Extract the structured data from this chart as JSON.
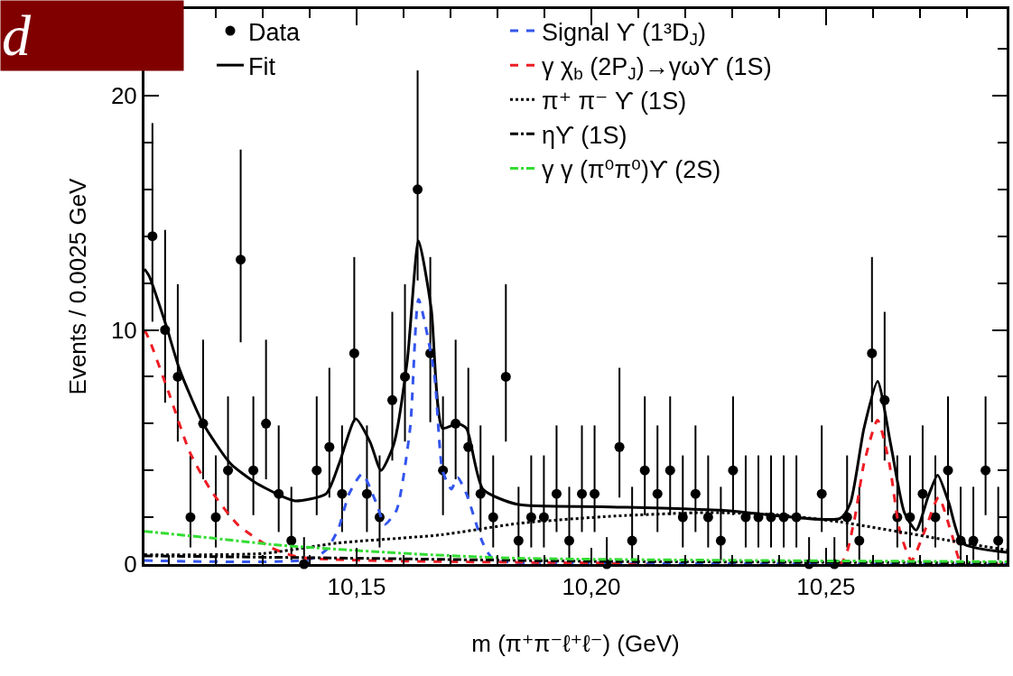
{
  "chart_data": {
    "type": "scatter",
    "title": "d",
    "xlabel": "m (π⁺π⁻ℓ⁺ℓ⁻) (GeV)",
    "ylabel": "Events / 0.0025 GeV",
    "xlim": [
      10.1048,
      10.2885
    ],
    "xticks": [
      {
        "value": 10.11,
        "label": null
      },
      {
        "value": 10.12,
        "label": null
      },
      {
        "value": 10.13,
        "label": null
      },
      {
        "value": 10.14,
        "label": null
      },
      {
        "value": 10.15,
        "label": "10,15"
      },
      {
        "value": 10.16,
        "label": null
      },
      {
        "value": 10.17,
        "label": null
      },
      {
        "value": 10.18,
        "label": null
      },
      {
        "value": 10.19,
        "label": null
      },
      {
        "value": 10.2,
        "label": "10,20"
      },
      {
        "value": 10.21,
        "label": null
      },
      {
        "value": 10.22,
        "label": null
      },
      {
        "value": 10.23,
        "label": null
      },
      {
        "value": 10.24,
        "label": null
      },
      {
        "value": 10.25,
        "label": "10,25"
      },
      {
        "value": 10.26,
        "label": null
      },
      {
        "value": 10.27,
        "label": null
      },
      {
        "value": 10.28,
        "label": null
      }
    ],
    "ylim": [
      0,
      23.7
    ],
    "yticks": [
      0,
      {
        "value": 2,
        "label": null
      },
      {
        "value": 4,
        "label": null
      },
      {
        "value": 6,
        "label": null
      },
      {
        "value": 8,
        "label": null
      },
      10,
      {
        "value": 12,
        "label": null
      },
      {
        "value": 14,
        "label": null
      },
      {
        "value": 16,
        "label": null
      },
      {
        "value": 18,
        "label": null
      },
      20,
      {
        "value": 22,
        "label": null
      }
    ],
    "grid": false,
    "legend": "top",
    "series": [
      {
        "name": "Data",
        "marker": "circle",
        "color": "#000000",
        "x": [
          10.1065,
          10.1092,
          10.1119,
          10.1146,
          10.1173,
          10.12,
          10.1226,
          10.1253,
          10.128,
          10.1307,
          10.1334,
          10.1361,
          10.1388,
          10.1415,
          10.1442,
          10.1469,
          10.1495,
          10.1522,
          10.1549,
          10.1576,
          10.1603,
          10.163,
          10.1657,
          10.1684,
          10.1711,
          10.1738,
          10.1764,
          10.1791,
          10.1818,
          10.1845,
          10.1872,
          10.1899,
          10.1926,
          10.1953,
          10.198,
          10.2007,
          10.2033,
          10.206,
          10.2087,
          10.2114,
          10.2141,
          10.2168,
          10.2195,
          10.2222,
          10.2249,
          10.2276,
          10.2302,
          10.2329,
          10.2356,
          10.2383,
          10.241,
          10.2437,
          10.2464,
          10.2491,
          10.2518,
          10.2545,
          10.2571,
          10.2598,
          10.2625,
          10.2652,
          10.2679,
          10.2706,
          10.2733,
          10.276,
          10.2787,
          10.2814,
          10.284,
          10.2867
        ],
        "values": [
          14,
          10,
          8,
          2,
          6,
          2,
          4,
          13,
          4,
          6,
          3,
          1,
          0,
          4,
          5,
          3,
          9,
          3,
          2,
          7,
          8,
          16,
          9,
          4,
          6,
          5,
          3,
          2,
          8,
          1,
          2,
          2,
          3,
          1,
          3,
          3,
          0,
          5,
          1,
          4,
          3,
          4,
          2,
          3,
          2,
          1,
          4,
          2,
          2,
          2,
          2,
          2,
          0,
          3,
          0,
          2,
          1,
          9,
          7,
          2,
          2,
          3,
          2,
          4,
          1,
          1,
          4,
          1
        ],
        "errors": [
          [
            10.35,
            18.83
          ],
          [
            6.89,
            14.27
          ],
          [
            5.23,
            11.95
          ],
          [
            0.71,
            4.64
          ],
          [
            3.62,
            9.58
          ],
          [
            0.71,
            4.64
          ],
          [
            2.09,
            7.16
          ],
          [
            9.47,
            17.7
          ],
          [
            2.09,
            7.16
          ],
          [
            3.62,
            9.58
          ],
          [
            1.37,
            5.92
          ],
          [
            0.17,
            3.3
          ],
          [
            0,
            1.15
          ],
          [
            2.09,
            7.16
          ],
          [
            2.84,
            8.38
          ],
          [
            1.37,
            5.92
          ],
          [
            6.06,
            13.11
          ],
          [
            1.37,
            5.92
          ],
          [
            0.71,
            4.64
          ],
          [
            4.42,
            10.77
          ],
          [
            5.23,
            11.95
          ],
          [
            12.11,
            21.08
          ],
          [
            6.06,
            13.11
          ],
          [
            2.09,
            7.16
          ],
          [
            3.62,
            9.58
          ],
          [
            2.84,
            8.38
          ],
          [
            1.37,
            5.92
          ],
          [
            0.71,
            4.64
          ],
          [
            5.23,
            11.95
          ],
          [
            0.17,
            3.3
          ],
          [
            0.71,
            4.64
          ],
          [
            0.71,
            4.64
          ],
          [
            1.37,
            5.92
          ],
          [
            0.17,
            3.3
          ],
          [
            1.37,
            5.92
          ],
          [
            1.37,
            5.92
          ],
          [
            0,
            1.15
          ],
          [
            2.84,
            8.38
          ],
          [
            0.17,
            3.3
          ],
          [
            2.09,
            7.16
          ],
          [
            1.37,
            5.92
          ],
          [
            2.09,
            7.16
          ],
          [
            0.71,
            4.64
          ],
          [
            1.37,
            5.92
          ],
          [
            0.71,
            4.64
          ],
          [
            0.17,
            3.3
          ],
          [
            2.09,
            7.16
          ],
          [
            0.71,
            4.64
          ],
          [
            0.71,
            4.64
          ],
          [
            0.71,
            4.64
          ],
          [
            0.71,
            4.64
          ],
          [
            0.71,
            4.64
          ],
          [
            0,
            1.15
          ],
          [
            1.37,
            5.92
          ],
          [
            0,
            1.15
          ],
          [
            0.71,
            4.64
          ],
          [
            0.17,
            3.3
          ],
          [
            6.06,
            13.11
          ],
          [
            4.42,
            10.77
          ],
          [
            0.71,
            4.64
          ],
          [
            0.71,
            4.64
          ],
          [
            1.37,
            5.92
          ],
          [
            0.71,
            4.64
          ],
          [
            2.09,
            7.16
          ],
          [
            0.17,
            3.3
          ],
          [
            0.17,
            3.3
          ],
          [
            2.09,
            7.16
          ],
          [
            0.17,
            3.3
          ]
        ]
      },
      {
        "name": "Fit",
        "type": "line",
        "line_style": "solid",
        "color": "#000000",
        "x": [
          10.1048,
          10.1058,
          10.1094,
          10.1123,
          10.1173,
          10.1231,
          10.1283,
          10.134,
          10.1369,
          10.1435,
          10.1463,
          10.1498,
          10.1529,
          10.1552,
          10.1579,
          10.1608,
          10.1632,
          10.1659,
          10.1683,
          10.1715,
          10.1734,
          10.1769,
          10.1842,
          10.2023,
          10.2277,
          10.253,
          10.2552,
          10.2581,
          10.261,
          10.2638,
          10.2667,
          10.2692,
          10.2718,
          10.2738,
          10.2762,
          10.279,
          10.2885
        ],
        "values": [
          12.6,
          12.3,
          10.2,
          8.3,
          6.0,
          4.3,
          3.5,
          2.9,
          2.7,
          3.0,
          4.3,
          6.2,
          5.2,
          4.0,
          5.1,
          8.7,
          13.8,
          10.9,
          5.8,
          6.0,
          5.8,
          3.2,
          2.55,
          2.45,
          2.3,
          1.95,
          2.6,
          5.8,
          7.8,
          5.1,
          2.2,
          1.45,
          2.9,
          3.8,
          2.6,
          0.9,
          0.5
        ]
      },
      {
        "name": "Signal ϒ (1³D$_{J}$)",
        "type": "line",
        "line_style": "dashed",
        "color": "#3355ee",
        "x": [
          10.1048,
          10.14,
          10.1435,
          10.1461,
          10.1484,
          10.1512,
          10.1542,
          10.156,
          10.1585,
          10.1614,
          10.1632,
          10.1665,
          10.1683,
          10.1702,
          10.1715,
          10.1734,
          10.1769,
          10.1792,
          10.2,
          10.2885
        ],
        "values": [
          0.15,
          0.2,
          0.6,
          1.5,
          3.0,
          3.85,
          2.6,
          1.7,
          2.3,
          5.8,
          11.3,
          8.2,
          4.0,
          3.2,
          3.7,
          3.0,
          0.9,
          0.2,
          0.05,
          0.0
        ]
      },
      {
        "name": "γ χ$_{b}$ (2P$_{J}$)→γωϒ (1S)",
        "type": "line",
        "line_style": "dashed",
        "color": "#ee1c24",
        "x": [
          10.1048,
          10.1058,
          10.1101,
          10.1144,
          10.1188,
          10.1246,
          10.1318,
          10.1377,
          10.2,
          10.253,
          10.2559,
          10.2581,
          10.261,
          10.2635,
          10.2657,
          10.2682,
          10.2711,
          10.274,
          10.2769,
          10.279,
          10.2885
        ],
        "values": [
          10.0,
          9.6,
          7.25,
          4.8,
          3.2,
          1.7,
          0.7,
          0.3,
          0.05,
          0.0,
          1.75,
          4.3,
          6.15,
          4.3,
          1.45,
          0.15,
          1.45,
          2.85,
          1.2,
          0.0,
          0.0
        ]
      },
      {
        "name": "π⁺ π⁻ ϒ (1S)",
        "type": "line",
        "line_style": "dotted",
        "color": "#000000",
        "x": [
          10.1048,
          10.13,
          10.146,
          10.168,
          10.185,
          10.205,
          10.225,
          10.24,
          10.253,
          10.265,
          10.275,
          10.2885
        ],
        "values": [
          0.4,
          0.45,
          0.9,
          1.25,
          1.75,
          2.05,
          2.2,
          2.1,
          1.8,
          1.4,
          1.05,
          0.6
        ]
      },
      {
        "name": "ηϒ (1S)",
        "type": "line",
        "line_style": "dashdot",
        "color": "#000000",
        "x": [
          10.1048,
          10.15,
          10.2,
          10.2885
        ],
        "values": [
          0.35,
          0.25,
          0.12,
          0.05
        ]
      },
      {
        "name": "γ γ (π⁰π⁰)ϒ (2S)",
        "type": "line",
        "line_style": "dashdot",
        "color": "#33dd33",
        "x": [
          10.1048,
          10.1173,
          10.134,
          10.1608,
          10.1842,
          10.2885
        ],
        "values": [
          1.4,
          1.15,
          0.8,
          0.45,
          0.25,
          0.1
        ]
      }
    ]
  }
}
